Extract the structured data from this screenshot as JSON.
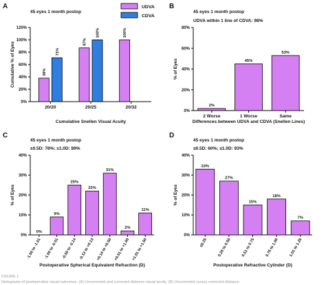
{
  "figure_label": "FIGURE 1",
  "caption_fragment": "Histograms of postoperative visual outcomes. (A) Uncorrected and corrected distance visual acuity. (B) Uncorrected versus corrected distance",
  "colors": {
    "udva": "#d580f2",
    "cdva": "#2f7ee0",
    "axis": "#000000"
  },
  "chart_data": [
    {
      "panel": "A",
      "type": "bar",
      "title": "45 eyes 1 month postop",
      "subtitle": "",
      "xlabel": "Cumulative Snellen Visual Acuity",
      "ylabel": "Cumulative % of Eyes",
      "ylim": [
        0,
        120
      ],
      "yticks": [
        0,
        20,
        40,
        60,
        80,
        100,
        120
      ],
      "ytick_suffix": "%",
      "categories": [
        "20/20",
        "20/25",
        "20/32"
      ],
      "legend": {
        "position": "top-right"
      },
      "series": [
        {
          "name": "UDVA",
          "color": "#d580f2",
          "values": [
            38,
            87,
            100
          ],
          "labels": [
            "38%",
            "87%",
            "100%"
          ]
        },
        {
          "name": "CDVA",
          "color": "#2f7ee0",
          "values": [
            71,
            100,
            null
          ],
          "labels": [
            "71%",
            "100%",
            ""
          ]
        }
      ]
    },
    {
      "panel": "B",
      "type": "bar",
      "title": "45 eyes 1 month postop",
      "subtitle": "UDVA within 1 line of CDVA: 98%",
      "xlabel": "Differences between UDVA and CDVA (Snellen Lines)",
      "ylabel": "% of Eyes",
      "ylim": [
        0,
        80
      ],
      "yticks": [
        0,
        20,
        40,
        60,
        80
      ],
      "ytick_suffix": "%",
      "categories": [
        "2 Worse",
        "1 Worse",
        "Same"
      ],
      "series": [
        {
          "name": "",
          "color": "#d580f2",
          "values": [
            2,
            45,
            53
          ],
          "labels": [
            "2%",
            "45%",
            "53%"
          ]
        }
      ]
    },
    {
      "panel": "C",
      "type": "bar",
      "title": "45 eyes 1 month postop",
      "subtitle": "±0.5D: 78%; ±1.0D: 89%",
      "xlabel": "Postoperative Spherical Equivalent Refraction (D)",
      "ylabel": "% of Eyes",
      "ylim": [
        0,
        40
      ],
      "yticks": [
        0,
        10,
        20,
        30,
        40
      ],
      "ytick_suffix": "%",
      "categories": [
        "-1.50 to -1.01",
        "-1.00 to -0.51",
        "-0.50 to -0.14",
        "-0.13 to +0.13",
        "+0.14 to +0.50",
        "+0.51 to +1.00",
        "+1.01 to +1.50"
      ],
      "series": [
        {
          "name": "",
          "color": "#d580f2",
          "values": [
            0,
            9,
            25,
            22,
            31,
            2,
            11
          ],
          "labels": [
            "0%",
            "9%",
            "25%",
            "22%",
            "31%",
            "2%",
            "11%"
          ]
        }
      ]
    },
    {
      "panel": "D",
      "type": "bar",
      "title": "45 eyes 1 month postop",
      "subtitle": "≤0.5D: 60%; ≤1.0D: 93%",
      "xlabel": "Postoperative Refractive Cylinder (D)",
      "ylabel": "% of Eyes",
      "ylim": [
        0,
        40
      ],
      "yticks": [
        0,
        10,
        20,
        30,
        40
      ],
      "ytick_suffix": "%",
      "categories": [
        "≤0.25",
        "0.26 to 0.50",
        "0.51 to 0.75",
        "0.76 to 1.00",
        "1.01 to 1.25"
      ],
      "series": [
        {
          "name": "",
          "color": "#d580f2",
          "values": [
            33,
            27,
            15,
            18,
            7
          ],
          "labels": [
            "33%",
            "27%",
            "15%",
            "18%",
            "7%"
          ]
        }
      ]
    }
  ]
}
